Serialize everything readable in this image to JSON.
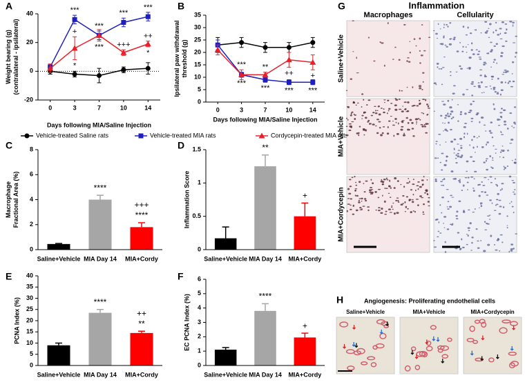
{
  "chart_data": [
    {
      "type": "line",
      "label": "A",
      "ylabel": [
        "Weight bearing (g)",
        "(contralateral - ipsilateral)"
      ],
      "xlabel": "Days following MIA/Saline Injection",
      "categories": [
        "0",
        "3",
        "7",
        "10",
        "14"
      ],
      "ylim": [
        -20,
        40
      ],
      "yticks": [
        -20,
        0,
        20,
        40
      ],
      "series": [
        {
          "name": "Vehicle-treated Saline rats",
          "color": "#000000",
          "marker": "circle",
          "values": [
            0,
            -2,
            -3,
            1,
            2
          ],
          "errors": [
            2,
            2,
            5,
            2,
            4
          ]
        },
        {
          "name": "Vehicle-treated MIA rats",
          "color": "#1f1fbf",
          "marker": "square",
          "values": [
            3,
            36,
            25,
            34,
            38
          ],
          "errors": [
            2,
            3,
            3,
            3,
            3
          ],
          "annotations_above": [
            null,
            "***",
            "***",
            "***",
            "***"
          ]
        },
        {
          "name": "Cordycepin-treated MIA rats",
          "color": "#e8202a",
          "marker": "triangle",
          "values": [
            2,
            16,
            25,
            13,
            19
          ],
          "errors": [
            3,
            8,
            4,
            2,
            2
          ],
          "annotations_above": [
            null,
            "+",
            null,
            "+++",
            "++"
          ],
          "annotations_below": [
            null,
            "*",
            "***",
            null,
            "*"
          ]
        }
      ]
    },
    {
      "type": "line",
      "label": "B",
      "ylabel": [
        "Ipsilateral paw withdrawal",
        "threshold (g)"
      ],
      "xlabel": "Days following MIA/Saline Injection",
      "categories": [
        "0",
        "3",
        "7",
        "10",
        "14"
      ],
      "ylim": [
        0,
        35
      ],
      "yticks": [
        0,
        5,
        10,
        15,
        20,
        25,
        30,
        35
      ],
      "series": [
        {
          "color": "#000000",
          "marker": "circle",
          "values": [
            23,
            24,
            22,
            22,
            24
          ],
          "errors": [
            3,
            2,
            2,
            2,
            2
          ]
        },
        {
          "color": "#1f1fbf",
          "marker": "square",
          "values": [
            23,
            11,
            9,
            8,
            8
          ],
          "errors": [
            2,
            1,
            1,
            1,
            1
          ],
          "annotations_below": [
            null,
            "***",
            "***",
            "***",
            "***"
          ]
        },
        {
          "color": "#e8202a",
          "marker": "triangle",
          "values": [
            21,
            11,
            11,
            17,
            16
          ],
          "errors": [
            2,
            2,
            1,
            3,
            3
          ],
          "annotations_above": [
            null,
            "***",
            "**",
            null,
            null
          ],
          "annotations_below": [
            null,
            null,
            null,
            "++",
            "+"
          ]
        }
      ]
    },
    {
      "type": "bar",
      "label": "C",
      "ylabel": [
        "Macrophage",
        "Fractional Area (%)"
      ],
      "categories": [
        "Saline+Vehicle",
        "MIA Day 14",
        "MIA+Cordy"
      ],
      "colors": [
        "#000000",
        "#a6a6a6",
        "#ff0000"
      ],
      "values": [
        0.45,
        4.0,
        1.8
      ],
      "errors": [
        0.05,
        0.35,
        0.35
      ],
      "annotations": [
        [],
        [
          "****"
        ],
        [
          "+++",
          "****"
        ]
      ],
      "ylim": [
        0,
        8
      ],
      "yticks": [
        0,
        2,
        4,
        6,
        8
      ]
    },
    {
      "type": "bar",
      "label": "D",
      "ylabel": [
        "Inflammation Score"
      ],
      "categories": [
        "Saline+Vehicle",
        "MIA Day 14",
        "MIA+Cordy"
      ],
      "colors": [
        "#000000",
        "#a6a6a6",
        "#ff0000"
      ],
      "values": [
        0.17,
        1.25,
        0.5
      ],
      "errors": [
        0.17,
        0.17,
        0.2
      ],
      "annotations": [
        [],
        [
          "**"
        ],
        [
          "+"
        ]
      ],
      "ylim": [
        0,
        1.5
      ],
      "yticks": [
        0,
        0.5,
        1,
        1.5
      ]
    },
    {
      "type": "bar",
      "label": "E",
      "ylabel": [
        "PCNA Index (%)"
      ],
      "categories": [
        "Saline+Vehicle",
        "MIA Day 14",
        "MIA+Cordy"
      ],
      "colors": [
        "#000000",
        "#a6a6a6",
        "#ff0000"
      ],
      "values": [
        9,
        23.5,
        14.5
      ],
      "errors": [
        1,
        1.5,
        0.8
      ],
      "annotations": [
        [],
        [
          "****"
        ],
        [
          "++",
          "**"
        ]
      ],
      "ylim": [
        0,
        40
      ],
      "yticks": [
        0,
        5,
        10,
        15,
        20,
        25,
        30,
        35,
        40
      ]
    },
    {
      "type": "bar",
      "label": "F",
      "ylabel": [
        "EC PCNA Index (%)"
      ],
      "categories": [
        "Saline+Vehicle",
        "MIA Day 14",
        "MIA+Cordy"
      ],
      "colors": [
        "#000000",
        "#a6a6a6",
        "#ff0000"
      ],
      "values": [
        1.1,
        3.8,
        1.95
      ],
      "errors": [
        0.15,
        0.5,
        0.3
      ],
      "annotations": [
        [],
        [
          "****"
        ],
        [
          "+"
        ]
      ],
      "ylim": [
        0,
        6
      ],
      "yticks": [
        0,
        1,
        2,
        3,
        4,
        5,
        6
      ]
    }
  ],
  "image_panels": [
    {
      "label": "G",
      "title": "Inflammation",
      "columns": [
        "Macrophages",
        "Cellularity"
      ],
      "rows": [
        "Saline+Vehicle",
        "MIA+Vehicle",
        "MIA+Cordycepin"
      ]
    },
    {
      "label": "H",
      "title": "Angiogenesis: Proliferating endothelial cells",
      "columns": [
        "Saline+Vehicle",
        "MIA+Vehicle",
        "MIA+Cordycepin"
      ]
    }
  ]
}
